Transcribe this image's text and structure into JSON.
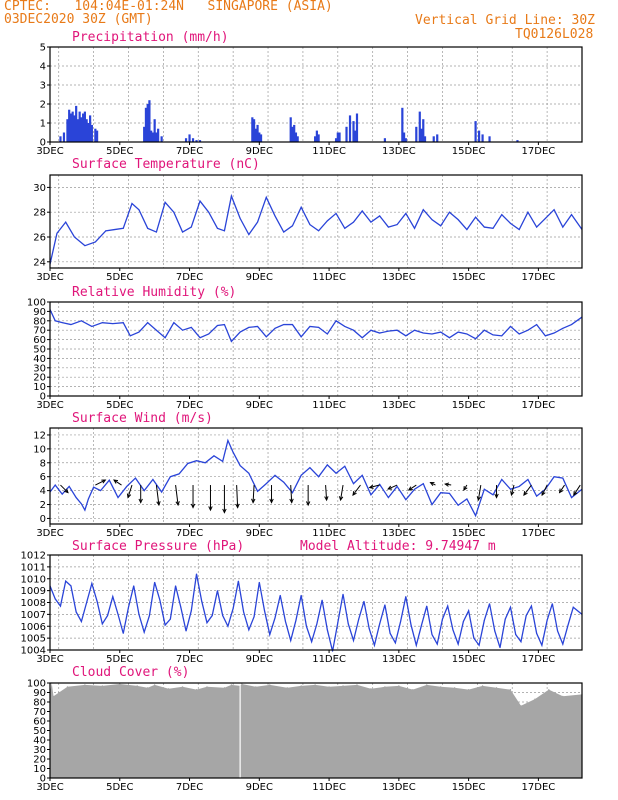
{
  "header": {
    "line1": "CPTEC:   104:04E-01:24N   SINGAPORE (ASIA)",
    "line2": "03DEC2020 30Z (GMT)",
    "grid_line": "Vertical Grid Line: 30Z",
    "code": "TQ0126L028"
  },
  "colors": {
    "header": "#e87a18",
    "title": "#e0157a",
    "series": "#2a44d8",
    "bars": "#2a44d8",
    "cloud": "#a6a6a6",
    "arrows": "#000000"
  },
  "x_axis": {
    "start_day": 3,
    "end_day": 18.25,
    "ticks": [
      {
        "day": 3,
        "label": "3DEC"
      },
      {
        "day": 5,
        "label": "5DEC"
      },
      {
        "day": 7,
        "label": "7DEC"
      },
      {
        "day": 9,
        "label": "9DEC"
      },
      {
        "day": 11,
        "label": "11DEC"
      },
      {
        "day": 13,
        "label": "13DEC"
      },
      {
        "day": 15,
        "label": "15DEC"
      },
      {
        "day": 17,
        "label": "17DEC"
      }
    ],
    "vertical_grid": [
      3.25,
      4.25,
      5.25,
      6.25,
      7.25,
      8.25,
      9.25,
      10.25,
      11.25,
      12.25,
      13.25,
      14.25,
      15.25,
      16.25,
      17.25
    ]
  },
  "chart_data": [
    {
      "id": "precip",
      "type": "bar",
      "title": "Precipitation (mm/h)",
      "ylim": [
        0,
        5
      ],
      "yticks": [
        0,
        1,
        2,
        3,
        4,
        5
      ],
      "x": [
        3.3,
        3.4,
        3.5,
        3.55,
        3.6,
        3.65,
        3.7,
        3.75,
        3.8,
        3.85,
        3.9,
        3.95,
        4.0,
        4.05,
        4.1,
        4.15,
        4.2,
        4.3,
        4.35,
        5.7,
        5.75,
        5.8,
        5.85,
        5.9,
        5.95,
        6.0,
        6.05,
        6.1,
        6.2,
        6.9,
        7.0,
        7.1,
        7.2,
        7.3,
        8.8,
        8.85,
        8.9,
        8.95,
        9.0,
        9.05,
        9.9,
        9.95,
        10.0,
        10.05,
        10.1,
        10.6,
        10.65,
        10.7,
        11.2,
        11.25,
        11.3,
        11.5,
        11.6,
        11.7,
        11.75,
        11.8,
        12.6,
        13.1,
        13.15,
        13.2,
        13.5,
        13.6,
        13.65,
        13.7,
        13.75,
        14.0,
        14.1,
        15.2,
        15.3,
        15.4,
        15.6,
        16.4
      ],
      "values": [
        0.3,
        0.5,
        1.2,
        1.7,
        1.5,
        1.6,
        1.4,
        1.9,
        1.2,
        1.6,
        1.3,
        1.5,
        1.6,
        1.2,
        1.0,
        1.4,
        0.9,
        0.7,
        0.6,
        0.8,
        1.8,
        2.0,
        2.2,
        0.6,
        0.5,
        1.2,
        0.5,
        0.7,
        0.3,
        0.2,
        0.4,
        0.2,
        0.1,
        0.1,
        1.3,
        1.2,
        0.7,
        0.9,
        0.5,
        0.4,
        1.3,
        0.8,
        0.9,
        0.5,
        0.3,
        0.3,
        0.6,
        0.4,
        0.2,
        0.5,
        0.5,
        0.8,
        1.4,
        1.1,
        0.6,
        1.5,
        0.2,
        1.8,
        0.5,
        0.2,
        0.8,
        1.6,
        0.7,
        1.2,
        0.3,
        0.3,
        0.4,
        1.1,
        0.6,
        0.4,
        0.3,
        0.1
      ]
    },
    {
      "id": "temp",
      "type": "line",
      "title": "Surface Temperature (nC)",
      "ylim": [
        23.5,
        31
      ],
      "yticks": [
        24,
        26,
        28,
        30
      ],
      "x": [
        3.0,
        3.2,
        3.45,
        3.7,
        4.0,
        4.3,
        4.6,
        4.85,
        5.1,
        5.35,
        5.55,
        5.8,
        6.05,
        6.3,
        6.55,
        6.8,
        7.05,
        7.3,
        7.55,
        7.8,
        8.0,
        8.2,
        8.45,
        8.7,
        8.95,
        9.2,
        9.45,
        9.7,
        9.95,
        10.2,
        10.45,
        10.7,
        10.95,
        11.2,
        11.45,
        11.7,
        11.95,
        12.2,
        12.45,
        12.7,
        12.95,
        13.2,
        13.45,
        13.7,
        13.95,
        14.2,
        14.45,
        14.7,
        14.95,
        15.2,
        15.45,
        15.7,
        15.95,
        16.2,
        16.45,
        16.7,
        16.95,
        17.2,
        17.45,
        17.7,
        17.95,
        18.25
      ],
      "values": [
        23.8,
        26.3,
        27.2,
        26.0,
        25.3,
        25.6,
        26.5,
        26.6,
        26.7,
        28.7,
        28.2,
        26.7,
        26.4,
        28.8,
        28.0,
        26.4,
        26.8,
        28.9,
        28.0,
        26.7,
        26.5,
        29.3,
        27.5,
        26.2,
        27.2,
        29.2,
        27.7,
        26.4,
        26.9,
        28.4,
        27.0,
        26.5,
        27.3,
        27.9,
        26.7,
        27.2,
        28.1,
        27.2,
        27.7,
        26.8,
        27.0,
        27.9,
        26.7,
        28.2,
        27.4,
        26.9,
        28.0,
        27.4,
        26.6,
        27.6,
        26.8,
        26.7,
        27.8,
        27.1,
        26.6,
        28.0,
        26.8,
        27.5,
        28.2,
        26.8,
        27.8,
        26.6
      ]
    },
    {
      "id": "rh",
      "type": "line",
      "title": "Relative Humidity (%)",
      "ylim": [
        0,
        100
      ],
      "yticks": [
        0,
        10,
        20,
        30,
        40,
        50,
        60,
        70,
        80,
        90,
        100
      ],
      "x": [
        3.0,
        3.15,
        3.35,
        3.6,
        3.9,
        4.2,
        4.5,
        4.8,
        5.1,
        5.3,
        5.55,
        5.8,
        6.05,
        6.3,
        6.55,
        6.8,
        7.05,
        7.3,
        7.55,
        7.8,
        8.0,
        8.2,
        8.45,
        8.7,
        8.95,
        9.2,
        9.45,
        9.7,
        9.95,
        10.2,
        10.45,
        10.7,
        10.95,
        11.2,
        11.45,
        11.7,
        11.95,
        12.2,
        12.45,
        12.7,
        12.95,
        13.2,
        13.45,
        13.7,
        13.95,
        14.2,
        14.45,
        14.7,
        14.95,
        15.2,
        15.45,
        15.7,
        15.95,
        16.2,
        16.45,
        16.7,
        16.95,
        17.2,
        17.45,
        17.7,
        17.95,
        18.25
      ],
      "values": [
        92,
        80,
        78,
        76,
        80,
        74,
        78,
        77,
        78,
        64,
        68,
        78,
        70,
        62,
        78,
        70,
        73,
        62,
        66,
        75,
        76,
        58,
        68,
        73,
        74,
        63,
        72,
        76,
        76,
        63,
        74,
        73,
        66,
        80,
        74,
        70,
        62,
        70,
        67,
        69,
        70,
        64,
        70,
        67,
        66,
        68,
        62,
        68,
        66,
        61,
        70,
        65,
        64,
        74,
        66,
        70,
        76,
        64,
        67,
        72,
        76,
        84
      ]
    },
    {
      "id": "wind",
      "type": "line",
      "title": "Surface Wind (m/s)",
      "ylim": [
        -0.8,
        13
      ],
      "yticks": [
        0,
        2,
        4,
        6,
        8,
        10,
        12
      ],
      "x": [
        3.0,
        3.15,
        3.35,
        3.55,
        3.75,
        3.9,
        4.0,
        4.1,
        4.25,
        4.45,
        4.7,
        4.95,
        5.2,
        5.45,
        5.7,
        5.95,
        6.2,
        6.45,
        6.7,
        6.95,
        7.2,
        7.45,
        7.7,
        7.95,
        8.1,
        8.25,
        8.45,
        8.7,
        8.95,
        9.2,
        9.45,
        9.7,
        9.95,
        10.2,
        10.45,
        10.7,
        10.95,
        11.2,
        11.45,
        11.7,
        11.95,
        12.2,
        12.45,
        12.7,
        12.95,
        13.2,
        13.45,
        13.7,
        13.95,
        14.2,
        14.45,
        14.7,
        14.95,
        15.2,
        15.45,
        15.7,
        15.95,
        16.2,
        16.45,
        16.7,
        16.95,
        17.2,
        17.45,
        17.7,
        17.95,
        18.25
      ],
      "values": [
        3.8,
        4.8,
        3.5,
        4.6,
        3.0,
        2.1,
        1.2,
        2.8,
        4.5,
        4.0,
        5.5,
        3.0,
        4.6,
        5.8,
        4.0,
        5.6,
        3.8,
        6.0,
        6.4,
        7.9,
        8.3,
        8.0,
        9.0,
        8.2,
        11.2,
        9.5,
        7.6,
        6.5,
        3.9,
        5.0,
        6.2,
        5.2,
        3.7,
        6.2,
        7.3,
        6.0,
        7.7,
        6.5,
        7.5,
        5.0,
        6.2,
        3.4,
        4.9,
        3.0,
        4.6,
        2.7,
        4.2,
        5.0,
        2.0,
        3.7,
        3.6,
        1.9,
        2.8,
        0.4,
        4.2,
        3.4,
        5.6,
        4.2,
        4.6,
        5.6,
        3.2,
        4.2,
        6.0,
        5.8,
        3.0,
        4.2
      ],
      "arrows_x": [
        3.3,
        4.3,
        5.05,
        5.35,
        5.6,
        6.05,
        6.6,
        7.1,
        7.6,
        8.0,
        8.35,
        8.85,
        9.35,
        9.9,
        10.4,
        10.9,
        11.4,
        11.9,
        12.45,
        12.95,
        13.5,
        14.05,
        14.5,
        14.95,
        15.35,
        15.8,
        16.3,
        16.8,
        17.25,
        17.75,
        18.2
      ],
      "arrows_u": [
        1.5,
        2.0,
        -1.5,
        -0.8,
        0,
        0.5,
        0.5,
        0,
        0,
        0,
        0.2,
        -0.2,
        0,
        0.2,
        0,
        0.2,
        -0.5,
        -1.5,
        -2.0,
        -1.8,
        -1.5,
        -1.0,
        -1.2,
        -0.6,
        -0.5,
        0,
        -0.5,
        -1.5,
        -1.0,
        -1.0,
        -1.3
      ],
      "arrows_v": [
        -1.5,
        1.0,
        1.0,
        -2.5,
        -3.5,
        -4.0,
        -4.0,
        -4.5,
        -5.0,
        -5.5,
        -4.5,
        -3.5,
        -3.5,
        -3.5,
        -4.0,
        -3.0,
        -3.0,
        -2.0,
        -0.5,
        -0.8,
        -1.0,
        0.5,
        0.2,
        -1.0,
        -3.0,
        -2.5,
        -2.0,
        -2.0,
        -2.0,
        -1.5,
        -2.0
      ]
    },
    {
      "id": "press",
      "type": "line",
      "title": "Surface Pressure (hPa)",
      "model_altitude": "Model Altitude: 9.74947 m",
      "ylim": [
        1004,
        1012
      ],
      "yticks": [
        1004,
        1005,
        1006,
        1007,
        1008,
        1009,
        1010,
        1011,
        1012
      ],
      "x": [
        3.0,
        3.15,
        3.3,
        3.45,
        3.6,
        3.75,
        3.9,
        4.05,
        4.2,
        4.35,
        4.5,
        4.65,
        4.8,
        4.95,
        5.1,
        5.25,
        5.4,
        5.55,
        5.7,
        5.85,
        6.0,
        6.15,
        6.3,
        6.45,
        6.6,
        6.75,
        6.9,
        7.05,
        7.2,
        7.35,
        7.5,
        7.65,
        7.8,
        7.95,
        8.1,
        8.25,
        8.4,
        8.55,
        8.7,
        8.85,
        9.0,
        9.15,
        9.3,
        9.45,
        9.6,
        9.75,
        9.9,
        10.05,
        10.2,
        10.35,
        10.5,
        10.65,
        10.8,
        10.95,
        11.1,
        11.25,
        11.4,
        11.55,
        11.7,
        11.85,
        12.0,
        12.15,
        12.3,
        12.45,
        12.6,
        12.75,
        12.9,
        13.05,
        13.2,
        13.35,
        13.5,
        13.65,
        13.8,
        13.95,
        14.1,
        14.25,
        14.4,
        14.55,
        14.7,
        14.85,
        15.0,
        15.15,
        15.3,
        15.45,
        15.6,
        15.75,
        15.9,
        16.05,
        16.2,
        16.35,
        16.5,
        16.65,
        16.8,
        16.95,
        17.1,
        17.25,
        17.4,
        17.55,
        17.7,
        17.85,
        18.0,
        18.25
      ],
      "values": [
        1009.4,
        1008.3,
        1007.7,
        1009.8,
        1009.4,
        1007.2,
        1006.4,
        1008.0,
        1009.6,
        1008.1,
        1006.2,
        1006.9,
        1008.5,
        1007.0,
        1005.4,
        1007.6,
        1009.4,
        1007.0,
        1005.5,
        1006.9,
        1009.7,
        1008.2,
        1006.1,
        1006.6,
        1009.4,
        1007.6,
        1005.6,
        1007.3,
        1010.4,
        1008.1,
        1006.3,
        1006.9,
        1009.0,
        1006.9,
        1006.0,
        1007.5,
        1009.8,
        1007.2,
        1005.7,
        1006.8,
        1009.7,
        1007.3,
        1005.3,
        1006.7,
        1008.6,
        1006.4,
        1004.8,
        1006.5,
        1008.6,
        1006.0,
        1004.7,
        1006.2,
        1008.2,
        1005.7,
        1003.9,
        1006.3,
        1008.7,
        1006.2,
        1004.8,
        1006.6,
        1008.1,
        1005.8,
        1004.4,
        1006.2,
        1007.8,
        1005.4,
        1004.6,
        1006.4,
        1008.5,
        1006.1,
        1004.4,
        1006.1,
        1007.7,
        1005.3,
        1004.5,
        1006.6,
        1007.7,
        1005.7,
        1004.5,
        1006.4,
        1007.3,
        1005.0,
        1004.4,
        1006.5,
        1007.9,
        1005.6,
        1004.2,
        1006.6,
        1007.6,
        1005.3,
        1004.7,
        1006.9,
        1007.7,
        1005.4,
        1004.4,
        1006.5,
        1007.9,
        1005.6,
        1004.5,
        1006.1,
        1007.6,
        1007.0
      ]
    },
    {
      "id": "cloud",
      "type": "area",
      "title": "Cloud Cover (%)",
      "ylim": [
        0,
        100
      ],
      "yticks": [
        0,
        10,
        20,
        30,
        40,
        50,
        60,
        70,
        80,
        90,
        100
      ],
      "x": [
        3.0,
        3.05,
        3.1,
        3.5,
        4.0,
        4.5,
        5.0,
        5.5,
        5.8,
        6.0,
        6.4,
        6.8,
        7.2,
        7.5,
        8.0,
        8.2,
        8.45,
        8.5,
        8.9,
        9.3,
        9.8,
        10.2,
        10.6,
        11.0,
        11.4,
        11.8,
        12.2,
        12.6,
        13.0,
        13.4,
        13.8,
        14.2,
        14.6,
        15.0,
        15.4,
        15.8,
        16.2,
        16.5,
        16.9,
        17.3,
        17.7,
        18.25
      ],
      "values": [
        90,
        100,
        86,
        96,
        98,
        97,
        99,
        97,
        95,
        98,
        94,
        96,
        93,
        96,
        95,
        98,
        97,
        99,
        96,
        98,
        95,
        97,
        98,
        96,
        97,
        98,
        94,
        96,
        97,
        93,
        98,
        96,
        95,
        93,
        97,
        95,
        93,
        76,
        83,
        93,
        86,
        88
      ]
    }
  ]
}
